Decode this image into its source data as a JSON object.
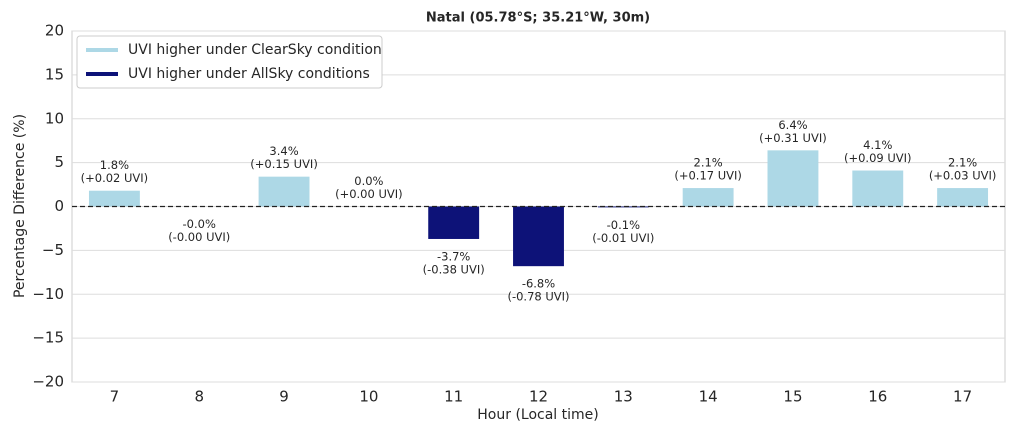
{
  "chart_data": {
    "type": "bar",
    "title": "Natal (05.78°S; 35.21°W, 30m)",
    "x_label": "Hour (Local time)",
    "y_label": "Percentage Difference (%)",
    "categories": [
      "7",
      "8",
      "9",
      "10",
      "11",
      "12",
      "13",
      "14",
      "15",
      "16",
      "17"
    ],
    "values": [
      1.8,
      -0.0,
      3.4,
      0.0,
      -3.7,
      -6.8,
      -0.1,
      2.1,
      6.4,
      4.1,
      2.1
    ],
    "value_labels": [
      "1.8%",
      "-0.0%",
      "3.4%",
      "0.0%",
      "-3.7%",
      "-6.8%",
      "-0.1%",
      "2.1%",
      "6.4%",
      "4.1%",
      "2.1%"
    ],
    "uvi_labels": [
      "(+0.02 UVI)",
      "(-0.00 UVI)",
      "(+0.15 UVI)",
      "(+0.00 UVI)",
      "(-0.38 UVI)",
      "(-0.78 UVI)",
      "(-0.01 UVI)",
      "(+0.17 UVI)",
      "(+0.31 UVI)",
      "(+0.09 UVI)",
      "(+0.03 UVI)"
    ],
    "colors": [
      "#add8e6",
      "#add8e6",
      "#add8e6",
      "#add8e6",
      "#0d1278",
      "#0d1278",
      "#0d1278",
      "#add8e6",
      "#add8e6",
      "#add8e6",
      "#add8e6"
    ],
    "legend": [
      {
        "name": "UVI higher under ClearSky condition",
        "color": "#add8e6"
      },
      {
        "name": "UVI higher under AllSky conditions",
        "color": "#0d1278"
      }
    ],
    "ylim": [
      -20,
      20
    ],
    "yticks": [
      {
        "value": -20,
        "label": "−20"
      },
      {
        "value": -15,
        "label": "−15"
      },
      {
        "value": -10,
        "label": "−10"
      },
      {
        "value": -5,
        "label": "−5"
      },
      0,
      5,
      10,
      15,
      20
    ],
    "grid": true
  }
}
